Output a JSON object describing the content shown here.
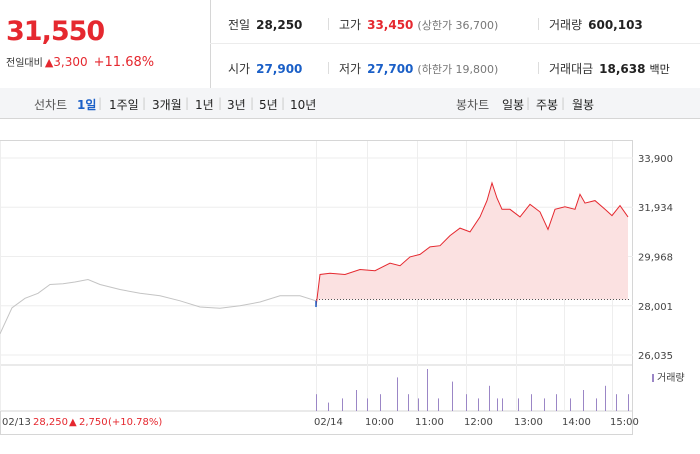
{
  "summary": {
    "price": "31,550",
    "change_label": "전일대비",
    "change_symbol": "▲",
    "change_value": "3,300",
    "change_rate": "+11.68%"
  },
  "info": {
    "prev_close_label": "전일",
    "prev_close": "28,250",
    "high_label": "고가",
    "high": "33,450",
    "upper_limit": "(상한가 36,700)",
    "volume_label": "거래량",
    "volume": "600,103",
    "open_label": "시가",
    "open": "27,900",
    "low_label": "저가",
    "low": "27,700",
    "lower_limit": "(하한가 19,800)",
    "amount_label": "거래대금",
    "amount": "18,638",
    "amount_unit": "백만"
  },
  "line_tabs": {
    "label": "선차트",
    "items": [
      "1일",
      "1주일",
      "3개월",
      "1년",
      "3년",
      "5년",
      "10년"
    ],
    "active": "1일"
  },
  "candle_tabs": {
    "label": "봉차트",
    "items": [
      "일봉",
      "주봉",
      "월봉"
    ]
  },
  "prev_day": {
    "date": "02/13",
    "close": "28,250",
    "symbol": "▲",
    "change": "2,750",
    "rate": "(+10.78%)"
  },
  "volume_legend": "거래량",
  "colors": {
    "up": "#e5282f",
    "down": "#1a5fc7",
    "area": "#fbe1e1",
    "prev_line": "#c4c4c4",
    "volume": "#9b86c6"
  },
  "chart_data": {
    "type": "line",
    "y_ticks": [
      "33,900",
      "31,934",
      "29,968",
      "28,001",
      "26,035"
    ],
    "ylim": [
      26035,
      33900
    ],
    "x_ticks": [
      "02/13",
      "02/14",
      "10:00",
      "11:00",
      "12:00",
      "13:00",
      "14:00",
      "15:00"
    ],
    "baseline": 28250,
    "series": [
      {
        "x": [
          0,
          12,
          25,
          38,
          50,
          63,
          75,
          88,
          100,
          120,
          140,
          160,
          180,
          200,
          220,
          240,
          260,
          280,
          300,
          316
        ],
        "values": [
          26880,
          27920,
          28300,
          28500,
          28850,
          28880,
          28950,
          29050,
          28850,
          28650,
          28500,
          28400,
          28200,
          27950,
          27900,
          28000,
          28150,
          28400,
          28400,
          28200
        ]
      },
      {
        "x": [
          316,
          320,
          330,
          345,
          360,
          375,
          390,
          400,
          410,
          420,
          430,
          440,
          450,
          460,
          470,
          480,
          487,
          492,
          497,
          502,
          510,
          520,
          530,
          540,
          548,
          555,
          565,
          575,
          580,
          585,
          595,
          605,
          612,
          620,
          628
        ],
        "values": [
          27950,
          29250,
          29300,
          29250,
          29450,
          29400,
          29700,
          29600,
          29950,
          30050,
          30350,
          30400,
          30800,
          31100,
          30950,
          31550,
          32200,
          32900,
          32300,
          31850,
          31850,
          31550,
          32050,
          31750,
          31050,
          31850,
          31950,
          31850,
          32450,
          32100,
          32200,
          31850,
          31600,
          32000,
          31550
        ]
      }
    ],
    "volume": {
      "x": [
        316,
        328,
        342,
        356,
        367,
        380,
        397,
        408,
        418,
        427,
        438,
        452,
        466,
        478,
        489,
        497,
        502,
        518,
        531,
        544,
        556,
        570,
        583,
        596,
        605,
        616,
        628
      ],
      "values": [
        0.4,
        0.2,
        0.3,
        0.5,
        0.3,
        0.4,
        0.8,
        0.4,
        0.3,
        1.0,
        0.3,
        0.7,
        0.4,
        0.3,
        0.6,
        0.3,
        0.3,
        0.3,
        0.4,
        0.3,
        0.4,
        0.3,
        0.5,
        0.3,
        0.6,
        0.4,
        0.4
      ]
    }
  }
}
